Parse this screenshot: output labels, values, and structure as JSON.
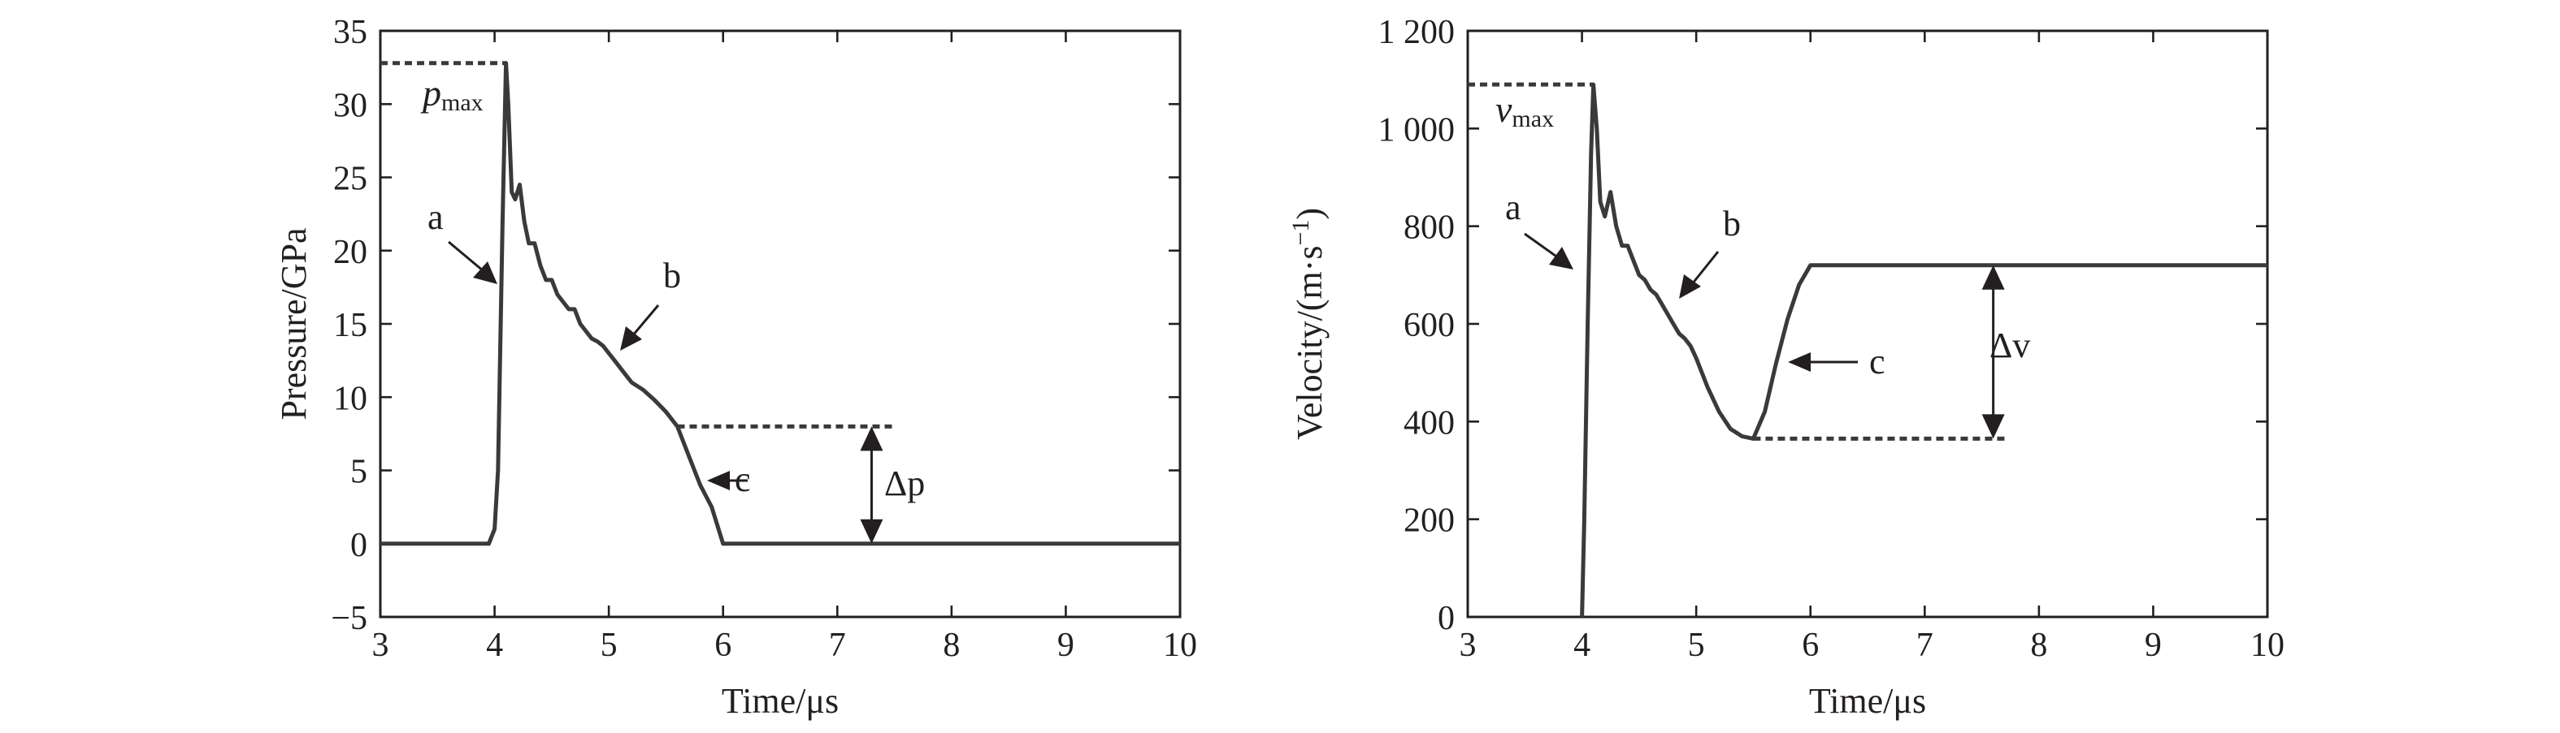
{
  "chart_data": [
    {
      "type": "line",
      "title": "",
      "xlabel": "Time/μs",
      "ylabel": "Pressure/GPa",
      "xlim": [
        3,
        10
      ],
      "ylim": [
        -5,
        35
      ],
      "xticks": [
        3,
        4,
        5,
        6,
        7,
        8,
        9,
        10
      ],
      "xtick_labels": [
        "3",
        "4",
        "5",
        "6",
        "7",
        "8",
        "9",
        "10"
      ],
      "yticks": [
        -5,
        0,
        5,
        10,
        15,
        20,
        25,
        30,
        35
      ],
      "ytick_labels": [
        "−5",
        "0",
        "5",
        "10",
        "15",
        "20",
        "25",
        "30",
        "35"
      ],
      "grid": false,
      "series": [
        {
          "x": [
            3.0,
            3.95,
            4.0,
            4.03,
            4.07,
            4.1,
            4.12,
            4.15,
            4.18,
            4.22,
            4.26,
            4.3,
            4.35,
            4.4,
            4.45,
            4.5,
            4.55,
            4.6,
            4.65,
            4.7,
            4.75,
            4.8,
            4.85,
            4.9,
            4.95,
            5.0,
            5.05,
            5.1,
            5.15,
            5.2,
            5.3,
            5.4,
            5.5,
            5.6,
            5.7,
            5.8,
            5.9,
            6.0,
            10.0
          ],
          "y": [
            0,
            0,
            1.0,
            5.0,
            22.0,
            32.8,
            30.0,
            24.0,
            23.5,
            24.5,
            22.0,
            20.5,
            20.5,
            19.0,
            18.0,
            18.0,
            17.0,
            16.5,
            16.0,
            16.0,
            15.0,
            14.5,
            14.0,
            13.8,
            13.5,
            13.0,
            12.5,
            12.0,
            11.5,
            11.0,
            10.5,
            9.8,
            9.0,
            8.0,
            6.0,
            4.0,
            2.5,
            0,
            0
          ]
        }
      ],
      "annotations": {
        "a_label": "a",
        "b_label": "b",
        "c_label": "c",
        "pmax_main": "p",
        "pmax_sub": "max",
        "pmax_value": 32.8,
        "pmax_x_range": [
          3.0,
          4.1
        ],
        "delta_label": "Δp",
        "delta_ref_value": 8.0,
        "delta_ref_x_range": [
          5.6,
          7.5
        ],
        "delta_arrow_x": 7.3,
        "delta_arrow_range": [
          0,
          8.0
        ]
      }
    },
    {
      "type": "line",
      "title": "",
      "xlabel": "Time/μs",
      "ylabel_main": "Velocity/(m·s",
      "ylabel_sup": "−1",
      "ylabel_tail": ")",
      "xlim": [
        3,
        10
      ],
      "ylim": [
        0,
        1200
      ],
      "xticks": [
        3,
        4,
        5,
        6,
        7,
        8,
        9,
        10
      ],
      "xtick_labels": [
        "3",
        "4",
        "5",
        "6",
        "7",
        "8",
        "9",
        "10"
      ],
      "yticks": [
        0,
        200,
        400,
        600,
        800,
        1000,
        1200
      ],
      "ytick_labels": [
        "0",
        "200",
        "400",
        "600",
        "800",
        "1 000",
        "1 200"
      ],
      "grid": false,
      "series": [
        {
          "x": [
            4.0,
            4.02,
            4.05,
            4.08,
            4.1,
            4.13,
            4.16,
            4.2,
            4.25,
            4.3,
            4.35,
            4.4,
            4.45,
            4.5,
            4.55,
            4.6,
            4.65,
            4.7,
            4.75,
            4.8,
            4.85,
            4.9,
            4.95,
            5.0,
            5.1,
            5.2,
            5.3,
            5.4,
            5.5,
            5.6,
            5.7,
            5.8,
            5.9,
            6.0,
            10.0
          ],
          "y": [
            0,
            200,
            600,
            950,
            1090,
            1000,
            850,
            820,
            870,
            800,
            760,
            760,
            730,
            700,
            690,
            670,
            660,
            640,
            620,
            600,
            580,
            570,
            555,
            530,
            470,
            420,
            385,
            370,
            365,
            420,
            520,
            610,
            680,
            720,
            720
          ]
        }
      ],
      "annotations": {
        "a_label": "a",
        "b_label": "b",
        "c_label": "c",
        "vmax_main": "v",
        "vmax_sub": "max",
        "vmax_value": 1090,
        "vmax_x_range": [
          3.0,
          4.1
        ],
        "delta_label": "Δv",
        "delta_ref_value": 365,
        "delta_ref_x_range": [
          5.5,
          7.7
        ],
        "delta_arrow_x": 7.6,
        "delta_arrow_range": [
          365,
          720
        ]
      }
    }
  ]
}
